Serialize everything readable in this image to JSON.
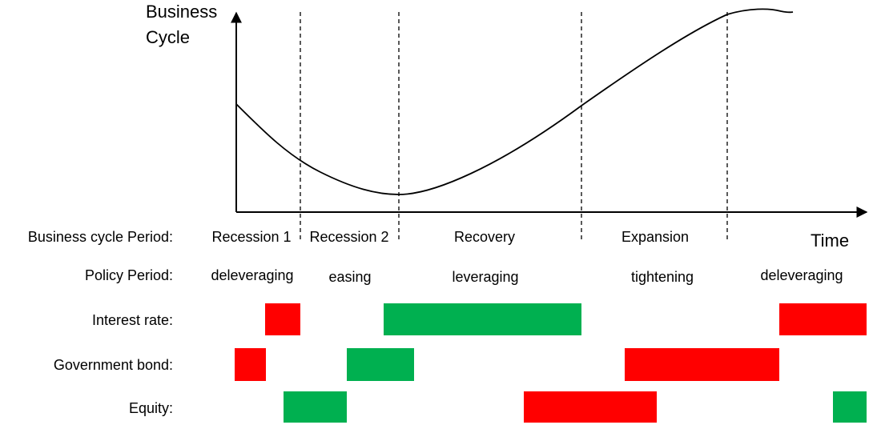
{
  "y_axis_label_lines": [
    "Business",
    "Cycle"
  ],
  "x_axis_label": "Time",
  "row_labels": {
    "business_cycle": "Business cycle Period:",
    "policy": "Policy Period:",
    "interest": "Interest rate:",
    "bond": "Government bond:",
    "equity": "Equity:"
  },
  "business_cycle_periods": [
    "Recession 1",
    "Recession 2",
    "Recovery",
    "Expansion"
  ],
  "policy_periods": [
    "deleveraging",
    "easing",
    "leveraging",
    "tightening",
    "deleveraging"
  ],
  "colors": {
    "green": "#00b050",
    "red": "#ff0000"
  },
  "icons": {
    "axis_arrows": "arrowhead-icon"
  }
}
